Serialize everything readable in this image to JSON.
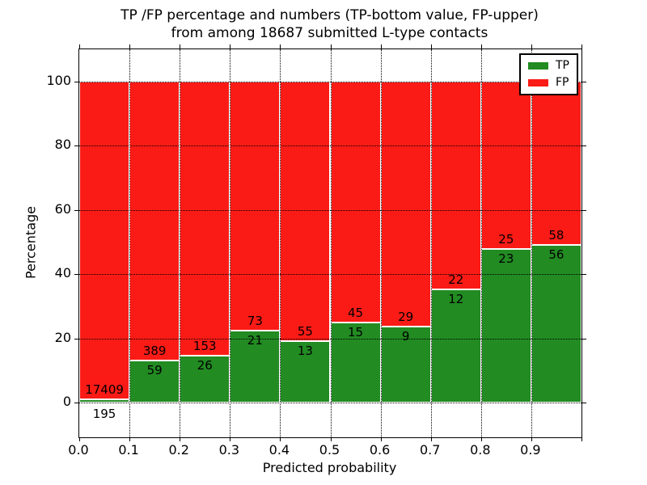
{
  "figure": {
    "title_line1": "TP /FP percentage and numbers (TP-bottom value, FP-upper)",
    "title_line2": "from among 18687 submitted L-type contacts",
    "xlabel": "Predicted probability",
    "ylabel": "Percentage"
  },
  "legend": {
    "items": [
      {
        "label": "TP",
        "color": "#228B22"
      },
      {
        "label": "FP",
        "color": "#FB1B16"
      }
    ]
  },
  "chart_data": {
    "type": "bar",
    "stacked": true,
    "normalized_to_percent": true,
    "title": "TP /FP percentage and numbers (TP-bottom value, FP-upper) from among 18687 submitted L-type contacts",
    "xlabel": "Predicted probability",
    "ylabel": "Percentage",
    "total_contacts": 18687,
    "categories": [
      "0.0-0.1",
      "0.1-0.2",
      "0.2-0.3",
      "0.3-0.4",
      "0.4-0.5",
      "0.5-0.6",
      "0.6-0.7",
      "0.7-0.8",
      "0.8-0.9",
      "0.9-1.0"
    ],
    "x_tick_labels": [
      "0.0",
      "0.1",
      "0.2",
      "0.3",
      "0.4",
      "0.5",
      "0.6",
      "0.7",
      "0.8",
      "0.9"
    ],
    "y_tick_labels": [
      0,
      20,
      40,
      60,
      80,
      100
    ],
    "xlim": [
      0.0,
      1.0
    ],
    "ylim": [
      -11,
      110
    ],
    "grid": "dotted both axes",
    "legend_position": "upper right",
    "series": [
      {
        "name": "TP",
        "color": "#228B22",
        "counts": [
          195,
          59,
          26,
          21,
          13,
          15,
          9,
          12,
          23,
          56
        ],
        "percent": [
          1.1,
          13.2,
          14.5,
          22.3,
          19.1,
          25.0,
          23.7,
          35.3,
          47.9,
          49.1
        ]
      },
      {
        "name": "FP",
        "color": "#FB1B16",
        "counts": [
          17409,
          389,
          153,
          73,
          55,
          45,
          29,
          22,
          25,
          58
        ],
        "percent": [
          98.9,
          86.8,
          85.5,
          77.7,
          80.9,
          75.0,
          76.3,
          64.7,
          52.1,
          50.9
        ]
      }
    ]
  }
}
